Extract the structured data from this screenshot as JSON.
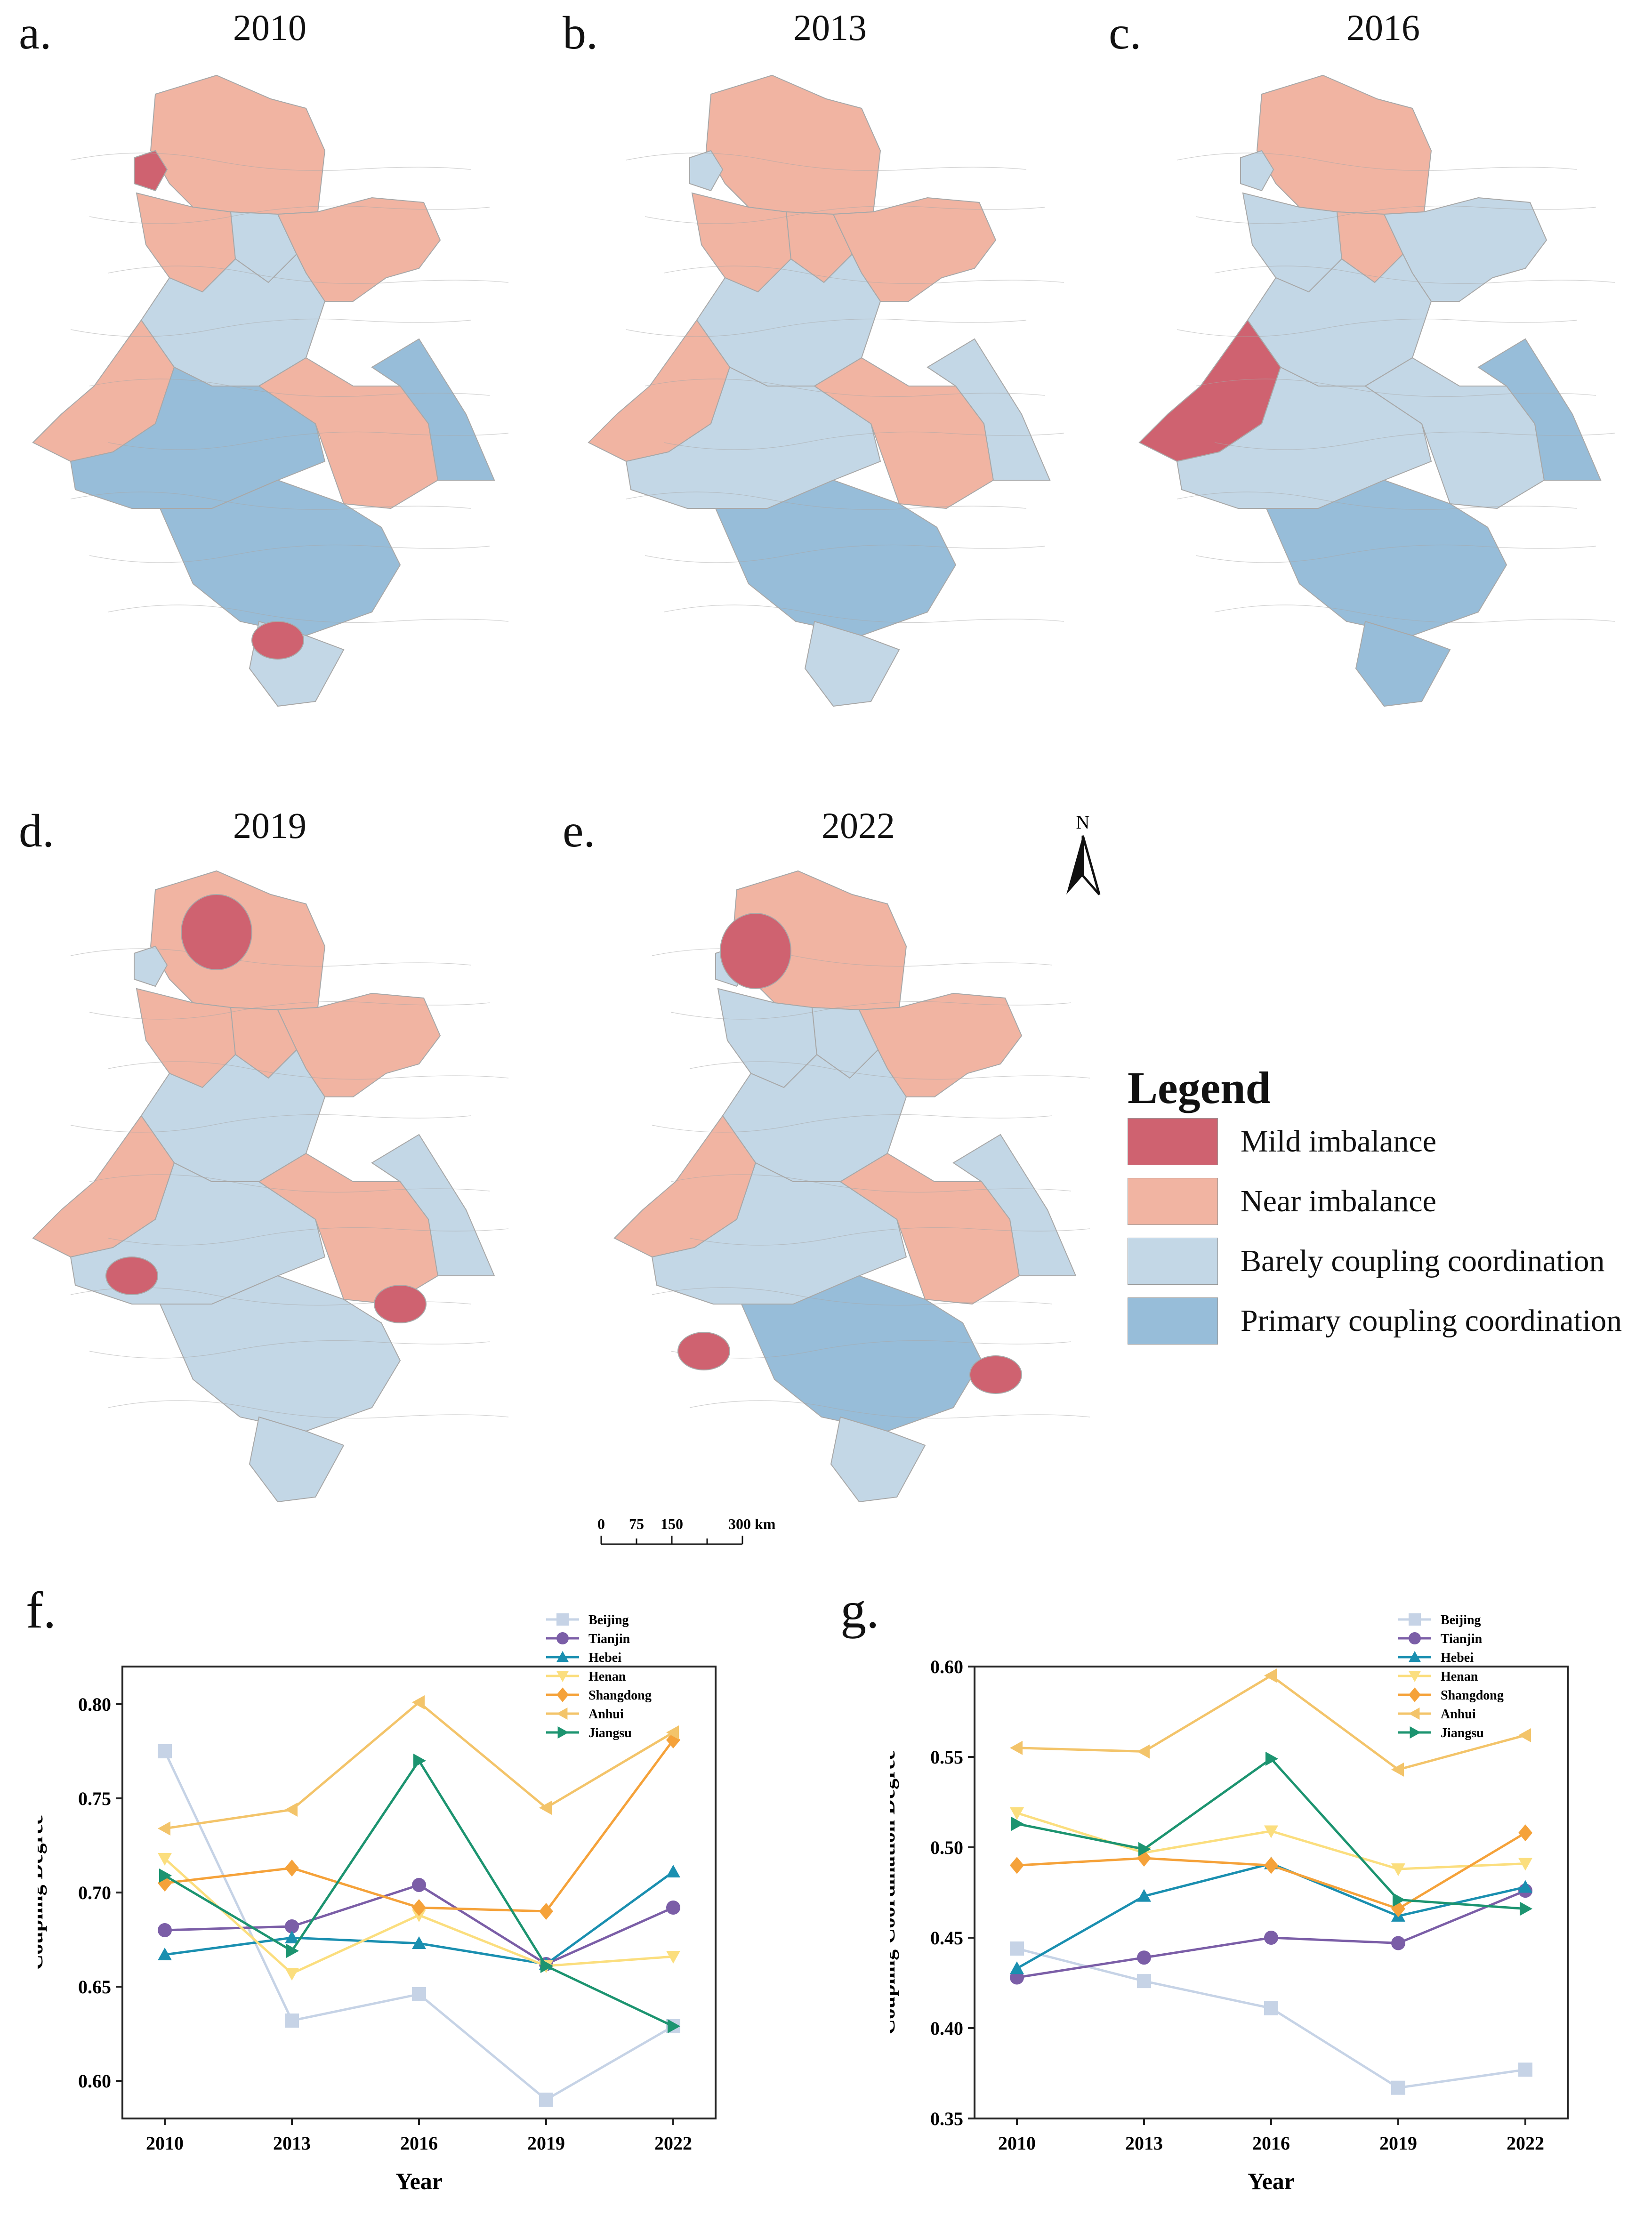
{
  "maps": [
    {
      "letter": "a.",
      "year": "2010"
    },
    {
      "letter": "b.",
      "year": "2013"
    },
    {
      "letter": "c.",
      "year": "2016"
    },
    {
      "letter": "d.",
      "year": "2019"
    },
    {
      "letter": "e.",
      "year": "2022"
    }
  ],
  "colors": {
    "mild": "#cf6270",
    "near": "#f1b4a2",
    "barely": "#c3d7e6",
    "primary": "#97bdd9",
    "border": "#a8a8a8"
  },
  "legend": {
    "title": "Legend",
    "items": [
      {
        "label": "Mild imbalance",
        "color": "#cf6270"
      },
      {
        "label": "Near imbalance",
        "color": "#f1b4a2"
      },
      {
        "label": "Barely coupling coordination",
        "color": "#c3d7e6"
      },
      {
        "label": "Primary coupling coordination",
        "color": "#97bdd9"
      }
    ]
  },
  "north_label": "N",
  "scale_bar": {
    "ticks": [
      "0",
      "75",
      "150",
      "300 km"
    ]
  },
  "chart_data": [
    {
      "panel": "f.",
      "type": "line",
      "title": "",
      "xlabel": "Year",
      "ylabel": "Coupling Degree",
      "categories": [
        "2010",
        "2013",
        "2016",
        "2019",
        "2022"
      ],
      "ylim": [
        0.58,
        0.82
      ],
      "yticks": [
        "0.60",
        "0.65",
        "0.70",
        "0.75",
        "0.80"
      ],
      "legend_position": "top-right",
      "series": [
        {
          "name": "Beijing",
          "color": "#c6d3e6",
          "marker": "square",
          "values": [
            0.775,
            0.632,
            0.646,
            0.59,
            0.629
          ]
        },
        {
          "name": "Tianjin",
          "color": "#7b5ea7",
          "marker": "circle",
          "values": [
            0.68,
            0.682,
            0.704,
            0.662,
            0.692
          ]
        },
        {
          "name": "Hebei",
          "color": "#1a8fb0",
          "marker": "triangle-up",
          "values": [
            0.667,
            0.676,
            0.673,
            0.662,
            0.711
          ]
        },
        {
          "name": "Henan",
          "color": "#fbde7e",
          "marker": "triangle-down",
          "values": [
            0.718,
            0.657,
            0.688,
            0.661,
            0.666
          ]
        },
        {
          "name": "Shangdong",
          "color": "#f5a23a",
          "marker": "diamond",
          "values": [
            0.705,
            0.713,
            0.692,
            0.69,
            0.781
          ]
        },
        {
          "name": "Anhui",
          "color": "#f3c46a",
          "marker": "triangle-left",
          "values": [
            0.734,
            0.744,
            0.801,
            0.745,
            0.785
          ]
        },
        {
          "name": "Jiangsu",
          "color": "#1c9470",
          "marker": "triangle-right",
          "values": [
            0.709,
            0.669,
            0.77,
            0.661,
            0.629
          ]
        }
      ]
    },
    {
      "panel": "g.",
      "type": "line",
      "title": "",
      "xlabel": "Year",
      "ylabel": "Coupling Coordination Degree",
      "categories": [
        "2010",
        "2013",
        "2016",
        "2019",
        "2022"
      ],
      "ylim": [
        0.35,
        0.6
      ],
      "yticks": [
        "0.35",
        "0.40",
        "0.45",
        "0.50",
        "0.55",
        "0.60"
      ],
      "legend_position": "top-right",
      "series": [
        {
          "name": "Beijing",
          "color": "#c6d3e6",
          "marker": "square",
          "values": [
            0.444,
            0.426,
            0.411,
            0.367,
            0.377
          ]
        },
        {
          "name": "Tianjin",
          "color": "#7b5ea7",
          "marker": "circle",
          "values": [
            0.428,
            0.439,
            0.45,
            0.447,
            0.476
          ]
        },
        {
          "name": "Hebei",
          "color": "#1a8fb0",
          "marker": "triangle-up",
          "values": [
            0.433,
            0.473,
            0.491,
            0.462,
            0.478
          ]
        },
        {
          "name": "Henan",
          "color": "#fbde7e",
          "marker": "triangle-down",
          "values": [
            0.519,
            0.497,
            0.509,
            0.488,
            0.491
          ]
        },
        {
          "name": "Shangdong",
          "color": "#f5a23a",
          "marker": "diamond",
          "values": [
            0.49,
            0.494,
            0.49,
            0.466,
            0.508
          ]
        },
        {
          "name": "Anhui",
          "color": "#f3c46a",
          "marker": "triangle-left",
          "values": [
            0.555,
            0.553,
            0.595,
            0.543,
            0.562
          ]
        },
        {
          "name": "Jiangsu",
          "color": "#1c9470",
          "marker": "triangle-right",
          "values": [
            0.513,
            0.499,
            0.549,
            0.471,
            0.466
          ]
        }
      ]
    }
  ]
}
